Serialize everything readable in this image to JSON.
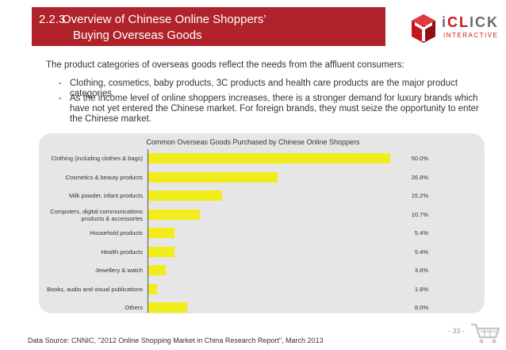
{
  "header": {
    "section_number": "2.2.3",
    "title_line1": "Overview of Chinese Online Shoppers’",
    "title_line2": "Buying Overseas Goods"
  },
  "logo": {
    "name_prefix": "i",
    "name_red": "CL",
    "name_suffix": "ICK",
    "sub": "INTERACTIVE"
  },
  "intro": "The product categories of overseas goods reflect the needs from the affluent consumers:",
  "bullets": [
    "Clothing, cosmetics, baby products, 3C products and health care products are the major product categories.",
    "As the income level of online shoppers increases, there is a stronger demand for luxury brands which have not yet entered the Chinese market. For foreign brands, they must seize the opportunity to enter the Chinese market."
  ],
  "bullet_marker": "-",
  "chart_data": {
    "type": "bar",
    "orientation": "horizontal",
    "title": "Common Overseas Goods Purchased by Chinese Online Shoppers",
    "categories": [
      "Clothing (including clothes & bags)",
      "Cosmetics & beauty products",
      "Milk powder, infant products",
      "Computers, digital communications products & accessories",
      "Household products",
      "Health products",
      "Jewellery & watch",
      "Books, audio and visual publications",
      "Others"
    ],
    "values": [
      50.0,
      26.8,
      15.2,
      10.7,
      5.4,
      5.4,
      3.6,
      1.8,
      8.0
    ],
    "value_labels": [
      "50.0%",
      "26.8%",
      "15.2%",
      "10.7%",
      "5.4%",
      "5.4%",
      "3.6%",
      "1.8%",
      "8.0%"
    ],
    "xlim": [
      0,
      50
    ],
    "bar_color": "#f2ec1d",
    "grid": false,
    "legend": "none"
  },
  "footer": {
    "source": "Data Source: CNNIC, \"2012 Online Shopping Market in China Research Report\", March 2013",
    "page": "- 33 -"
  },
  "colors": {
    "accent": "#b0232a",
    "panel": "#e6e6e6"
  }
}
